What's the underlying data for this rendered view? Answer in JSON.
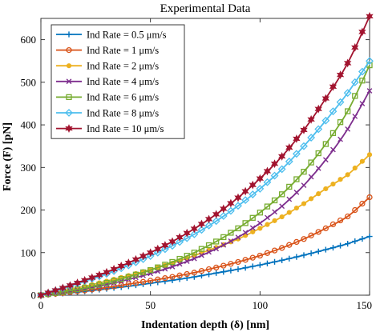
{
  "chart_data": {
    "type": "line",
    "title": "Experimental Data",
    "xlabel": "Indentation depth (δ) [nm]",
    "ylabel": "Force (F) [pN]",
    "xlim": [
      0,
      150
    ],
    "ylim": [
      0,
      650
    ],
    "xticks": [
      0,
      50,
      100,
      150
    ],
    "yticks": [
      0,
      100,
      200,
      300,
      400,
      500,
      600
    ],
    "grid": false,
    "legend_position": "top-left",
    "x": [
      0,
      10,
      20,
      30,
      40,
      50,
      60,
      70,
      80,
      90,
      100,
      110,
      120,
      130,
      140,
      150
    ],
    "series": [
      {
        "name": "Ind Rate = 0.5 μm/s",
        "color": "#0072BD",
        "marker": "plus",
        "values": [
          0,
          4,
          9,
          15,
          21,
          28,
          35,
          43,
          52,
          61,
          71,
          82,
          94,
          107,
          121,
          138
        ]
      },
      {
        "name": "Ind Rate = 1 μm/s",
        "color": "#D95319",
        "marker": "circle",
        "values": [
          0,
          5,
          11,
          18,
          26,
          34,
          43,
          53,
          65,
          78,
          93,
          111,
          132,
          157,
          185,
          230
        ]
      },
      {
        "name": "Ind Rate = 2 μm/s",
        "color": "#EDB120",
        "marker": "dot",
        "values": [
          0,
          10,
          21,
          33,
          46,
          60,
          75,
          93,
          112,
          132,
          157,
          184,
          215,
          250,
          283,
          330
        ]
      },
      {
        "name": "Ind Rate = 4 μm/s",
        "color": "#7E2F8E",
        "marker": "x",
        "values": [
          0,
          7,
          15,
          25,
          37,
          51,
          67,
          86,
          109,
          136,
          169,
          209,
          258,
          318,
          390,
          480
        ]
      },
      {
        "name": "Ind Rate = 6 μm/s",
        "color": "#77AC30",
        "marker": "square",
        "values": [
          0,
          8,
          17,
          29,
          43,
          59,
          78,
          100,
          126,
          157,
          194,
          237,
          290,
          355,
          432,
          540
        ]
      },
      {
        "name": "Ind Rate = 8 μm/s",
        "color": "#4DBEEE",
        "marker": "diamond",
        "values": [
          0,
          16,
          33,
          50,
          70,
          92,
          116,
          143,
          174,
          210,
          250,
          296,
          350,
          410,
          475,
          550
        ]
      },
      {
        "name": "Ind Rate = 10 μm/s",
        "color": "#A2142F",
        "marker": "hexagram",
        "values": [
          0,
          17,
          35,
          54,
          76,
          100,
          126,
          156,
          190,
          229,
          274,
          326,
          388,
          462,
          545,
          655
        ]
      }
    ]
  }
}
